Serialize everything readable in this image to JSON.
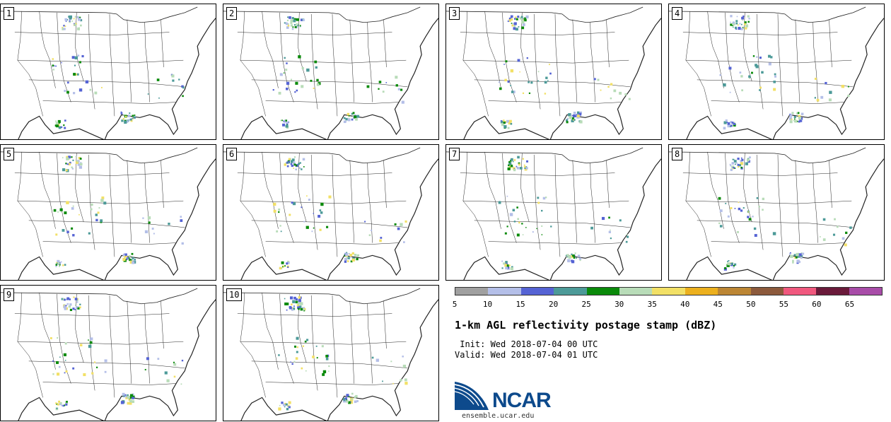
{
  "stamps": [
    "1",
    "2",
    "3",
    "4",
    "5",
    "6",
    "7",
    "8",
    "9",
    "10"
  ],
  "colorbar": {
    "colors": [
      "#a0a0a0",
      "#b4bfe8",
      "#5563d4",
      "#4c9a98",
      "#0a8a0a",
      "#b8dcb8",
      "#f2e066",
      "#ecb01e",
      "#bc8634",
      "#8c5a3c",
      "#f0587e",
      "#6a1a3a",
      "#a84ca8"
    ],
    "ticks": [
      "5",
      "10",
      "15",
      "20",
      "25",
      "30",
      "35",
      "40",
      "45",
      "50",
      "55",
      "60",
      "65"
    ]
  },
  "title": "1-km AGL reflectivity postage stamp (dBZ)",
  "init": " Init: Wed 2018-07-04 00 UTC",
  "valid": "Valid: Wed 2018-07-04 01 UTC",
  "logo": {
    "name": "NCAR",
    "url": "ensemble.ucar.edu",
    "colors": [
      "#0d4a8c",
      "#4a9fd8"
    ]
  }
}
